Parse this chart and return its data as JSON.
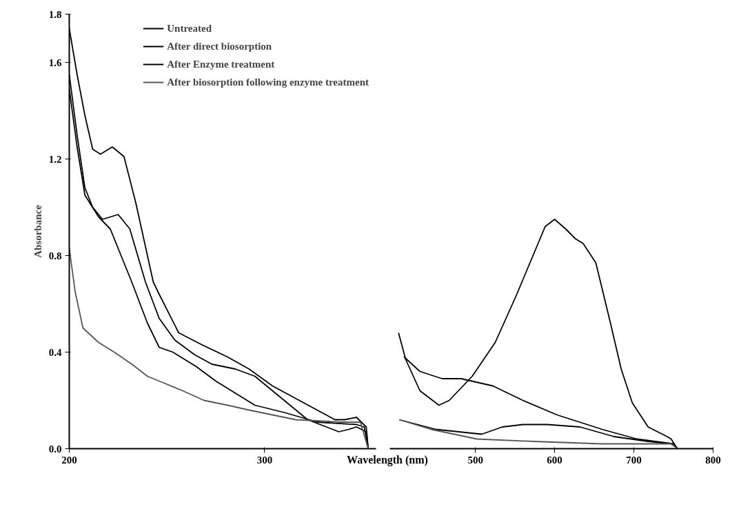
{
  "chart_data": [
    {
      "type": "line",
      "ylabel": "Absorbance",
      "xlabel": "Wavelength (nm)",
      "xlim": [
        200,
        357
      ],
      "xticks": [
        200,
        300
      ],
      "ylim": [
        0,
        1.8
      ],
      "yticks": [
        {
          "value": 0,
          "label": "0.0"
        },
        0.4,
        0.8,
        1.2,
        1.6,
        1.8
      ],
      "legend": "top right",
      "grid": false,
      "series": [
        {
          "name": "Untreated",
          "color": "#000000",
          "x": [
            200,
            204,
            208,
            212,
            217,
            221,
            225,
            231,
            239,
            246,
            254,
            264,
            273,
            285,
            295,
            310,
            322,
            338,
            343,
            347,
            352,
            353
          ],
          "values": [
            1.55,
            1.3,
            1.08,
            1.0,
            0.95,
            0.96,
            0.97,
            0.91,
            0.69,
            0.54,
            0.45,
            0.39,
            0.35,
            0.33,
            0.3,
            0.2,
            0.12,
            0.07,
            0.08,
            0.09,
            0.07,
            0.0
          ]
        },
        {
          "name": "After direct biosorption",
          "color": "#000000",
          "x": [
            200,
            204,
            208,
            215,
            221,
            232,
            240,
            246,
            253,
            257,
            265,
            275,
            285,
            295,
            310,
            327,
            347,
            351,
            353
          ],
          "values": [
            1.49,
            1.25,
            1.05,
            0.96,
            0.91,
            0.69,
            0.52,
            0.42,
            0.4,
            0.38,
            0.34,
            0.28,
            0.23,
            0.18,
            0.15,
            0.11,
            0.1,
            0.09,
            0.0
          ]
        },
        {
          "name": "After Enzyme treatment",
          "color": "#000000",
          "x": [
            200,
            204,
            208,
            212,
            216,
            222,
            228,
            234,
            243,
            246,
            256,
            268,
            281,
            292,
            304,
            320,
            336,
            341,
            347,
            352,
            353
          ],
          "values": [
            1.74,
            1.55,
            1.38,
            1.24,
            1.22,
            1.25,
            1.21,
            1.02,
            0.69,
            0.64,
            0.48,
            0.43,
            0.38,
            0.33,
            0.26,
            0.19,
            0.12,
            0.12,
            0.13,
            0.09,
            0.0
          ]
        },
        {
          "name": "After biosorption following enzyme treatment",
          "color": "#555555",
          "x": [
            200,
            203,
            207,
            215,
            223,
            232,
            240,
            246,
            258,
            269,
            281,
            292,
            304,
            316,
            328,
            339,
            349,
            353
          ],
          "values": [
            0.83,
            0.65,
            0.5,
            0.44,
            0.4,
            0.35,
            0.3,
            0.28,
            0.24,
            0.2,
            0.18,
            0.16,
            0.14,
            0.12,
            0.115,
            0.11,
            0.11,
            0.0
          ]
        }
      ]
    },
    {
      "type": "line",
      "xlim": [
        392,
        800
      ],
      "xticks": [
        500,
        600,
        700,
        800
      ],
      "ylim": [
        0,
        1.8
      ],
      "tick_labels": "x",
      "grid": false,
      "series": [
        {
          "color": "#000000",
          "x": [
            403,
            412,
            430,
            454,
            467,
            496,
            525,
            551,
            574,
            588,
            600,
            614,
            626,
            636,
            652,
            669,
            684,
            698,
            718,
            742,
            747,
            755
          ],
          "values": [
            0.48,
            0.37,
            0.24,
            0.18,
            0.2,
            0.3,
            0.44,
            0.63,
            0.81,
            0.92,
            0.95,
            0.91,
            0.87,
            0.85,
            0.77,
            0.54,
            0.33,
            0.19,
            0.09,
            0.05,
            0.04,
            0.0
          ]
        },
        {
          "color": "#000000",
          "x": [
            404,
            450,
            508,
            534,
            560,
            591,
            632,
            675,
            718,
            750,
            755
          ],
          "values": [
            0.12,
            0.08,
            0.06,
            0.09,
            0.1,
            0.1,
            0.09,
            0.05,
            0.03,
            0.02,
            0.0
          ]
        },
        {
          "color": "#000000",
          "x": [
            410,
            430,
            458,
            482,
            522,
            560,
            603,
            660,
            704,
            750,
            755
          ],
          "values": [
            0.38,
            0.32,
            0.29,
            0.29,
            0.26,
            0.2,
            0.14,
            0.08,
            0.04,
            0.02,
            0.0
          ]
        },
        {
          "color": "#555555",
          "x": [
            404,
            444,
            502,
            574,
            660,
            747,
            755
          ],
          "values": [
            0.12,
            0.08,
            0.04,
            0.03,
            0.02,
            0.02,
            0.0
          ]
        }
      ]
    }
  ]
}
